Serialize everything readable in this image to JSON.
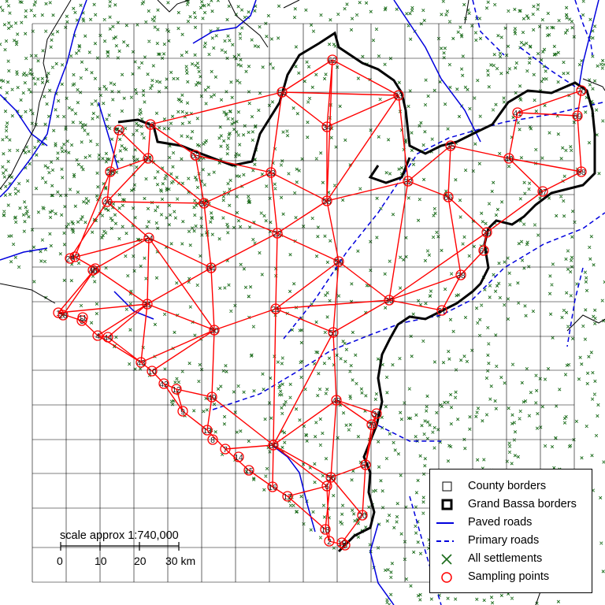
{
  "map": {
    "scale": {
      "label": "scale approx 1:740,000",
      "ticks": [
        "0",
        "10",
        "20",
        "30 km"
      ]
    },
    "legend": [
      {
        "label": "County borders",
        "symbol": "square-thin",
        "color": "#000000"
      },
      {
        "label": "Grand Bassa borders",
        "symbol": "square-thick",
        "color": "#000000"
      },
      {
        "label": "Paved roads",
        "symbol": "solid-line",
        "color": "#0000dd"
      },
      {
        "label": "Primary roads",
        "symbol": "dashed-line",
        "color": "#0000dd"
      },
      {
        "label": "All settlements",
        "symbol": "x-mark",
        "color": "#1a6b1a"
      },
      {
        "label": "Sampling points",
        "symbol": "circle",
        "color": "#ff0000"
      }
    ],
    "colors": {
      "settlement": "#1a6b1a",
      "road": "#0000dd",
      "sampling": "#ff0000",
      "border": "#000000",
      "grid": "#000000"
    },
    "sampling_point_ids": [
      "1",
      "2",
      "3",
      "4",
      "5",
      "6",
      "7",
      "8",
      "9",
      "10",
      "11",
      "12",
      "13",
      "14",
      "15",
      "16",
      "17",
      "18",
      "19",
      "20",
      "21",
      "22",
      "23",
      "24",
      "25",
      "26",
      "27",
      "28",
      "29",
      "30",
      "31",
      "32",
      "33",
      "34",
      "35",
      "36",
      "37",
      "38",
      "39",
      "40",
      "41",
      "42",
      "43",
      "44",
      "45",
      "46",
      "47",
      "48",
      "49",
      "50",
      "51",
      "52",
      "53",
      "54",
      "55",
      "56",
      "57",
      "58",
      "59",
      "60",
      "61",
      "62",
      "63",
      "64",
      "65",
      "66",
      "67",
      "68",
      "69",
      "70"
    ]
  }
}
